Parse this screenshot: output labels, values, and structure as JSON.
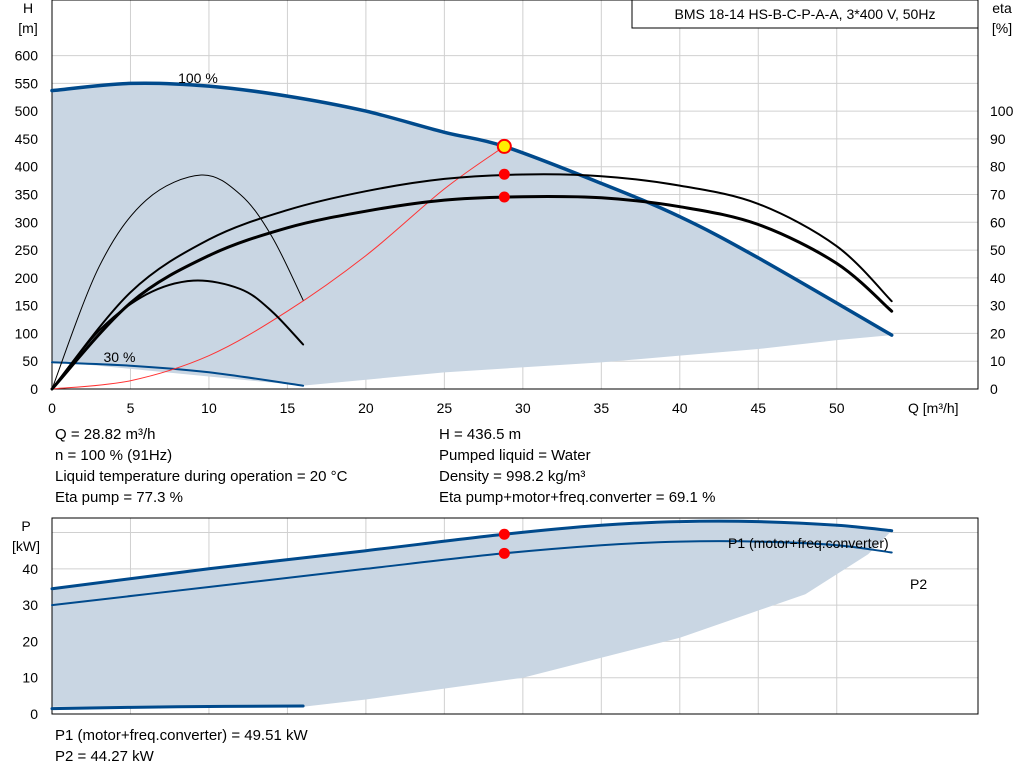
{
  "header": {
    "title": "BMS 18-14 HS-B-C-P-A-A, 3*400 V, 50Hz"
  },
  "colors": {
    "envelope_fill": "#c9d6e3",
    "curve_blue": "#004a8c",
    "curve_black": "#000000",
    "system_curve": "#ff3333",
    "grid": "#d0d0d0",
    "duty_point": "#ff0000",
    "duty_point_marker": "#ffee00"
  },
  "duty_info": {
    "q": "Q = 28.82 m³/h",
    "n": "n = 100 % (91Hz)",
    "temp": "Liquid temperature during operation = 20 °C",
    "eta_pump": "Eta pump = 77.3 %",
    "h": "H = 436.5 m",
    "liquid": "Pumped liquid = Water",
    "density": "Density = 998.2 kg/m³",
    "eta_total": "Eta pump+motor+freq.converter = 69.1 %"
  },
  "power_info": {
    "p1": "P1 (motor+freq.converter) = 49.51 kW",
    "p2": "P2 = 44.27 kW"
  },
  "chart_data": [
    {
      "type": "line",
      "title": "BMS 18-14 HS-B-C-P-A-A, 3*400 V, 50Hz",
      "xlabel": "Q [m³/h]",
      "ylabel": "H",
      "ylabel_unit": "[m]",
      "y2label": "eta",
      "y2label_unit": "[%]",
      "xlim": [
        0,
        59
      ],
      "ylim": [
        0,
        700
      ],
      "y2lim": [
        0,
        140
      ],
      "xticks": [
        0,
        5,
        10,
        15,
        20,
        25,
        30,
        35,
        40,
        45,
        50
      ],
      "yticks": [
        0,
        50,
        100,
        150,
        200,
        250,
        300,
        350,
        400,
        450,
        500,
        550,
        600
      ],
      "y2ticks": [
        0,
        10,
        20,
        30,
        40,
        50,
        60,
        70,
        80,
        90,
        100
      ],
      "grid": true,
      "annotations": [
        {
          "text": "100 %",
          "x": 9.3,
          "y": 560
        },
        {
          "text": "30 %",
          "x": 4.3,
          "y": 58
        }
      ],
      "envelope": [
        [
          0,
          537
        ],
        [
          5,
          550
        ],
        [
          10,
          545
        ],
        [
          15,
          527
        ],
        [
          20,
          500
        ],
        [
          25,
          462
        ],
        [
          28.82,
          436.5
        ],
        [
          35,
          370
        ],
        [
          40,
          310
        ],
        [
          45,
          236
        ],
        [
          53.5,
          97
        ],
        [
          50,
          88
        ],
        [
          45,
          72
        ],
        [
          40,
          60
        ],
        [
          35,
          48
        ],
        [
          25,
          30
        ],
        [
          16,
          6
        ],
        [
          0,
          50
        ]
      ],
      "series": [
        {
          "axis": "H",
          "color": "#004a8c",
          "width": 3.5,
          "x": [
            0,
            5,
            10,
            15,
            20,
            25,
            28.82,
            35,
            40,
            45,
            53.5
          ],
          "values": [
            537,
            550,
            545,
            527,
            500,
            462,
            436.5,
            370,
            310,
            236,
            97
          ]
        },
        {
          "axis": "H",
          "color": "#004a8c",
          "width": 2,
          "x": [
            0,
            5,
            10,
            16
          ],
          "values": [
            48,
            42,
            30,
            6
          ]
        },
        {
          "axis": "H",
          "color": "#ff3333",
          "width": 1,
          "x": [
            0,
            5,
            10,
            15,
            20,
            25,
            28.82
          ],
          "values": [
            0,
            15,
            60,
            140,
            240,
            360,
            436.5
          ]
        },
        {
          "axis": "eta",
          "color": "#000000",
          "width": 2,
          "x": [
            0,
            5,
            10,
            15,
            20,
            25,
            30,
            35,
            40,
            45,
            50,
            53.5
          ],
          "values": [
            0,
            34.8,
            53.8,
            64.4,
            71.2,
            75.6,
            77.2,
            76.6,
            73.2,
            66.6,
            51.4,
            31.6
          ]
        },
        {
          "axis": "eta",
          "color": "#000000",
          "width": 3,
          "x": [
            0,
            5,
            10,
            15,
            20,
            25,
            30,
            35,
            40,
            45,
            50,
            53.5
          ],
          "values": [
            0,
            31,
            48,
            58,
            64,
            68,
            69.2,
            68.8,
            65.6,
            59.2,
            45.2,
            28
          ]
        },
        {
          "axis": "eta",
          "color": "#000000",
          "width": 1,
          "x": [
            0,
            3,
            6,
            9.5,
            12,
            14,
            16
          ],
          "values": [
            0,
            44,
            68,
            77,
            70,
            55,
            32
          ]
        },
        {
          "axis": "eta",
          "color": "#000000",
          "width": 2,
          "x": [
            0,
            3,
            6,
            9,
            12,
            14,
            16
          ],
          "values": [
            0,
            21,
            34,
            39,
            36,
            28,
            16
          ]
        }
      ],
      "points": [
        {
          "axis": "H",
          "x": 28.82,
          "value": 436.5,
          "style": "duty"
        },
        {
          "axis": "eta",
          "x": 28.82,
          "value": 77.3,
          "style": "red"
        },
        {
          "axis": "eta",
          "x": 28.82,
          "value": 69.1,
          "style": "red"
        }
      ]
    },
    {
      "type": "line",
      "ylabel": "P",
      "ylabel_unit": "[kW]",
      "xlim": [
        0,
        59
      ],
      "ylim": [
        0,
        54
      ],
      "yticks": [
        0,
        10,
        20,
        30,
        40
      ],
      "xticks": [
        0,
        5,
        10,
        15,
        20,
        25,
        30,
        35,
        40,
        45,
        50
      ],
      "grid": true,
      "envelope": [
        [
          0,
          34.5
        ],
        [
          10,
          40
        ],
        [
          20,
          45
        ],
        [
          28.82,
          49.51
        ],
        [
          35,
          52
        ],
        [
          45,
          53
        ],
        [
          53.5,
          50.5
        ],
        [
          52,
          44
        ],
        [
          48,
          33
        ],
        [
          40,
          21
        ],
        [
          30,
          10
        ],
        [
          20,
          4
        ],
        [
          16,
          2
        ],
        [
          0,
          2
        ]
      ],
      "series": [
        {
          "name": "P1 (motor+freq.converter)",
          "color": "#004a8c",
          "width": 3,
          "x": [
            0,
            10,
            20,
            28.82,
            35,
            40,
            45,
            50,
            53.5
          ],
          "values": [
            34.5,
            40,
            45,
            49.51,
            52,
            53,
            53,
            52,
            50.5
          ]
        },
        {
          "name": "P2",
          "color": "#004a8c",
          "width": 2,
          "x": [
            0,
            10,
            20,
            28.82,
            35,
            40,
            45,
            50,
            53.5
          ],
          "values": [
            30,
            35,
            40,
            44.27,
            46.5,
            47.5,
            47.5,
            46.5,
            44.5
          ]
        },
        {
          "color": "#004a8c",
          "width": 3,
          "x": [
            0,
            8,
            16
          ],
          "values": [
            1.5,
            2,
            2.2
          ]
        }
      ],
      "points": [
        {
          "x": 28.82,
          "value": 49.51,
          "style": "red"
        },
        {
          "x": 28.82,
          "value": 44.27,
          "style": "red"
        }
      ]
    }
  ]
}
